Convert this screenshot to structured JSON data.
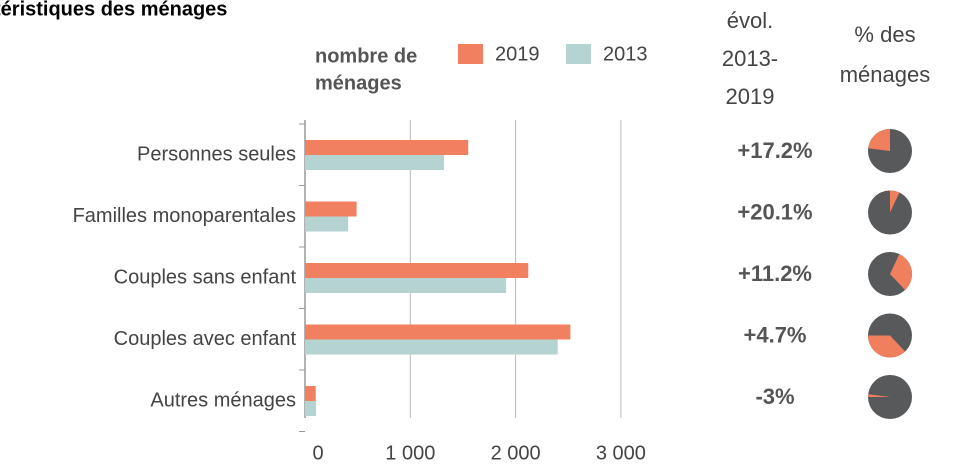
{
  "chart_data": {
    "type": "bar",
    "title": "téristiques des ménages",
    "legend_title": [
      "nombre de",
      "ménages"
    ],
    "categories": [
      "Personnes seules",
      "Familles monoparentales",
      "Couples sans enfant",
      "Couples avec enfant",
      "Autres ménages"
    ],
    "series": [
      {
        "name": "2019",
        "color": "#f08060",
        "values": [
          1550,
          490,
          2120,
          2520,
          102
        ]
      },
      {
        "name": "2013",
        "color": "#b5d3d0",
        "values": [
          1320,
          410,
          1910,
          2400,
          105
        ]
      }
    ],
    "xlim": [
      0,
      3500
    ],
    "xticks": [
      0,
      {
        "value": 1000,
        "label": "1 000"
      },
      {
        "value": 2000,
        "label": "2 000"
      },
      {
        "value": 3000,
        "label": "3 000"
      }
    ],
    "grid": true,
    "change": {
      "title": [
        "évol.",
        "2013-",
        "2019"
      ],
      "values": [
        17.2,
        20.1,
        11.2,
        4.7,
        -3
      ],
      "value_labels": [
        "+17.2%",
        "+20.1%",
        "+11.2%",
        "+4.7%",
        "-3%"
      ]
    },
    "share": {
      "title": [
        "% des",
        "ménages"
      ],
      "values": [
        23,
        7,
        31,
        37,
        2
      ],
      "color": "#f07f5d",
      "rest_color": "#58595b"
    }
  }
}
